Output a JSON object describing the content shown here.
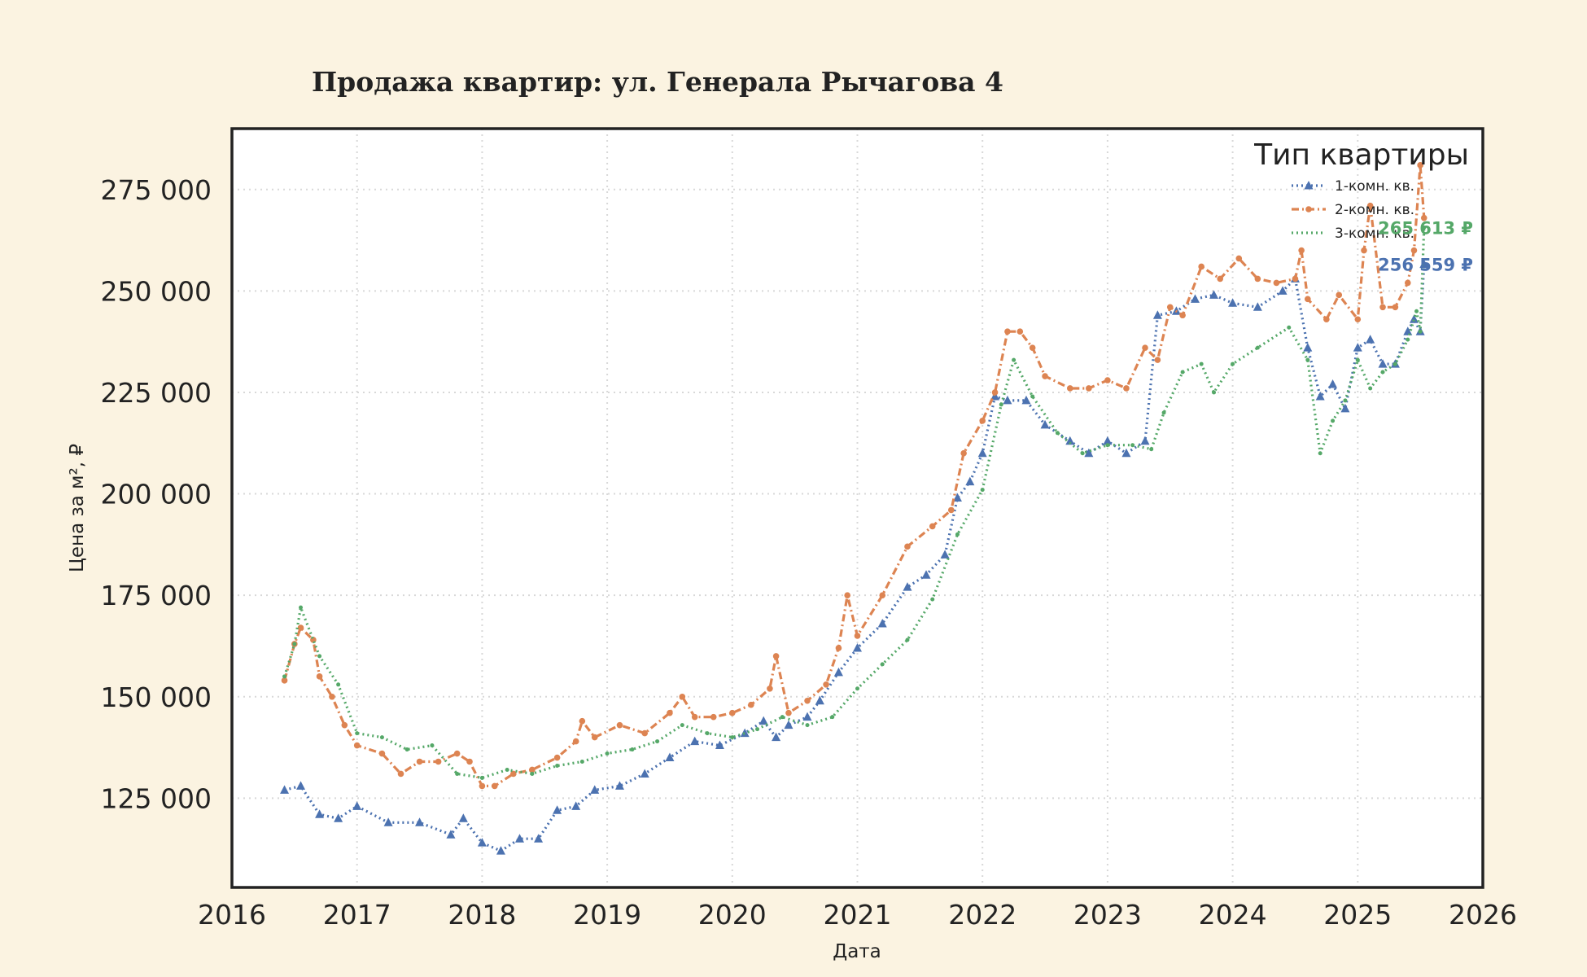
{
  "chart_data": {
    "type": "line",
    "title": "Продажа квартир: ул. Генерала Рычагова 4",
    "xlabel": "Дата",
    "ylabel": "Цена за м², ₽",
    "x_ticks": [
      "2016",
      "2017",
      "2018",
      "2019",
      "2020",
      "2021",
      "2022",
      "2023",
      "2024",
      "2025",
      "2026"
    ],
    "y_ticks": [
      "125 000",
      "150 000",
      "175 000",
      "200 000",
      "225 000",
      "250 000",
      "275 000"
    ],
    "xlim": [
      2016.0,
      2026.0
    ],
    "ylim": [
      103000,
      290000
    ],
    "grid": true,
    "legend": {
      "title": "Тип квартиры",
      "position": "top-right"
    },
    "series": [
      {
        "name": "1-комн. кв.",
        "color": "#4c72b0",
        "style": "dotted",
        "marker": "triangle",
        "end_label": "256 559 ₽",
        "x": [
          2016.42,
          2016.55,
          2016.7,
          2016.85,
          2017.0,
          2017.25,
          2017.5,
          2017.75,
          2017.85,
          2018.0,
          2018.15,
          2018.3,
          2018.45,
          2018.6,
          2018.75,
          2018.9,
          2019.1,
          2019.3,
          2019.5,
          2019.7,
          2019.9,
          2020.1,
          2020.25,
          2020.35,
          2020.45,
          2020.6,
          2020.7,
          2020.85,
          2021.0,
          2021.2,
          2021.4,
          2021.55,
          2021.7,
          2021.8,
          2021.9,
          2022.0,
          2022.1,
          2022.2,
          2022.35,
          2022.5,
          2022.7,
          2022.85,
          2023.0,
          2023.15,
          2023.3,
          2023.4,
          2023.55,
          2023.7,
          2023.85,
          2024.0,
          2024.2,
          2024.4,
          2024.5,
          2024.6,
          2024.7,
          2024.8,
          2024.9,
          2025.0,
          2025.1,
          2025.2,
          2025.3,
          2025.4,
          2025.45,
          2025.5,
          2025.53
        ],
        "values": [
          127000,
          128000,
          121000,
          120000,
          123000,
          119000,
          119000,
          116000,
          120000,
          114000,
          112000,
          115000,
          115000,
          122000,
          123000,
          127000,
          128000,
          131000,
          135000,
          139000,
          138000,
          141000,
          144000,
          140000,
          143000,
          145000,
          149000,
          156000,
          162000,
          168000,
          177000,
          180000,
          185000,
          199000,
          203000,
          210000,
          224000,
          223000,
          223000,
          217000,
          213000,
          210000,
          213000,
          210000,
          213000,
          244000,
          245000,
          248000,
          249000,
          247000,
          246000,
          250000,
          253000,
          236000,
          224000,
          227000,
          221000,
          236000,
          238000,
          232000,
          232000,
          240000,
          243000,
          240000,
          256559
        ]
      },
      {
        "name": "2-комн. кв.",
        "color": "#dd8452",
        "style": "dashdot",
        "marker": "circle",
        "end_label": "",
        "x": [
          2016.42,
          2016.5,
          2016.55,
          2016.65,
          2016.7,
          2016.8,
          2016.9,
          2017.0,
          2017.2,
          2017.35,
          2017.5,
          2017.65,
          2017.8,
          2017.9,
          2018.0,
          2018.1,
          2018.25,
          2018.4,
          2018.6,
          2018.75,
          2018.8,
          2018.9,
          2019.1,
          2019.3,
          2019.5,
          2019.6,
          2019.7,
          2019.85,
          2020.0,
          2020.15,
          2020.3,
          2020.35,
          2020.45,
          2020.6,
          2020.75,
          2020.85,
          2020.92,
          2021.0,
          2021.2,
          2021.4,
          2021.6,
          2021.75,
          2021.85,
          2022.0,
          2022.1,
          2022.2,
          2022.3,
          2022.4,
          2022.5,
          2022.7,
          2022.85,
          2023.0,
          2023.15,
          2023.3,
          2023.4,
          2023.5,
          2023.6,
          2023.75,
          2023.9,
          2024.05,
          2024.2,
          2024.35,
          2024.5,
          2024.55,
          2024.6,
          2024.75,
          2024.85,
          2025.0,
          2025.05,
          2025.1,
          2025.2,
          2025.3,
          2025.4,
          2025.45,
          2025.5,
          2025.53
        ],
        "values": [
          154000,
          163000,
          167000,
          164000,
          155000,
          150000,
          143000,
          138000,
          136000,
          131000,
          134000,
          134000,
          136000,
          134000,
          128000,
          128000,
          131000,
          132000,
          135000,
          139000,
          144000,
          140000,
          143000,
          141000,
          146000,
          150000,
          145000,
          145000,
          146000,
          148000,
          152000,
          160000,
          146000,
          149000,
          153000,
          162000,
          175000,
          165000,
          175000,
          187000,
          192000,
          196000,
          210000,
          218000,
          225000,
          240000,
          240000,
          236000,
          229000,
          226000,
          226000,
          228000,
          226000,
          236000,
          233000,
          246000,
          244000,
          256000,
          253000,
          258000,
          253000,
          252000,
          253000,
          260000,
          248000,
          243000,
          249000,
          243000,
          260000,
          271000,
          246000,
          246000,
          252000,
          260000,
          281000,
          268000
        ]
      },
      {
        "name": "3-комн. кв.",
        "color": "#55a868",
        "style": "dotted",
        "marker": "none",
        "end_label": "265 613 ₽",
        "x": [
          2016.42,
          2016.5,
          2016.55,
          2016.7,
          2016.85,
          2017.0,
          2017.2,
          2017.4,
          2017.6,
          2017.8,
          2018.0,
          2018.2,
          2018.4,
          2018.6,
          2018.8,
          2019.0,
          2019.2,
          2019.4,
          2019.6,
          2019.8,
          2020.0,
          2020.2,
          2020.4,
          2020.6,
          2020.8,
          2021.0,
          2021.2,
          2021.4,
          2021.6,
          2021.8,
          2022.0,
          2022.15,
          2022.25,
          2022.4,
          2022.6,
          2022.8,
          2023.0,
          2023.2,
          2023.35,
          2023.45,
          2023.6,
          2023.75,
          2023.85,
          2024.0,
          2024.2,
          2024.45,
          2024.6,
          2024.7,
          2024.8,
          2024.9,
          2025.0,
          2025.1,
          2025.2,
          2025.3,
          2025.4,
          2025.47,
          2025.5,
          2025.53
        ],
        "values": [
          155000,
          163000,
          172000,
          160000,
          153000,
          141000,
          140000,
          137000,
          138000,
          131000,
          130000,
          132000,
          131000,
          133000,
          134000,
          136000,
          137000,
          139000,
          143000,
          141000,
          140000,
          142000,
          145000,
          143000,
          145000,
          152000,
          158000,
          164000,
          174000,
          190000,
          201000,
          222000,
          233000,
          224000,
          215000,
          210000,
          212000,
          212000,
          211000,
          220000,
          230000,
          232000,
          225000,
          232000,
          236000,
          241000,
          233000,
          210000,
          218000,
          223000,
          233000,
          226000,
          230000,
          232000,
          238000,
          245000,
          240000,
          265613
        ]
      }
    ]
  }
}
